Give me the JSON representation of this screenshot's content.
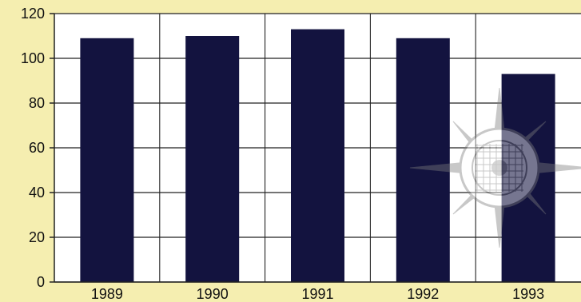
{
  "chart_data": {
    "type": "bar",
    "title": "",
    "xlabel": "",
    "ylabel": "",
    "categories": [
      "1989",
      "1990",
      "1991",
      "1992",
      "1993"
    ],
    "values": [
      109,
      110,
      113,
      109,
      93
    ],
    "ylim": [
      0,
      120
    ],
    "yticks": [
      "0",
      "20",
      "40",
      "60",
      "80",
      "100",
      "120"
    ],
    "grid": true,
    "legend": "none"
  },
  "colors": {
    "background": "#f5eeb0",
    "plot_background": "#ffffff",
    "bar": "#13133f",
    "grid": "#222222",
    "watermark": "#7d7d7d"
  },
  "decorations": {
    "watermark_icon": "compass-seal-icon"
  }
}
